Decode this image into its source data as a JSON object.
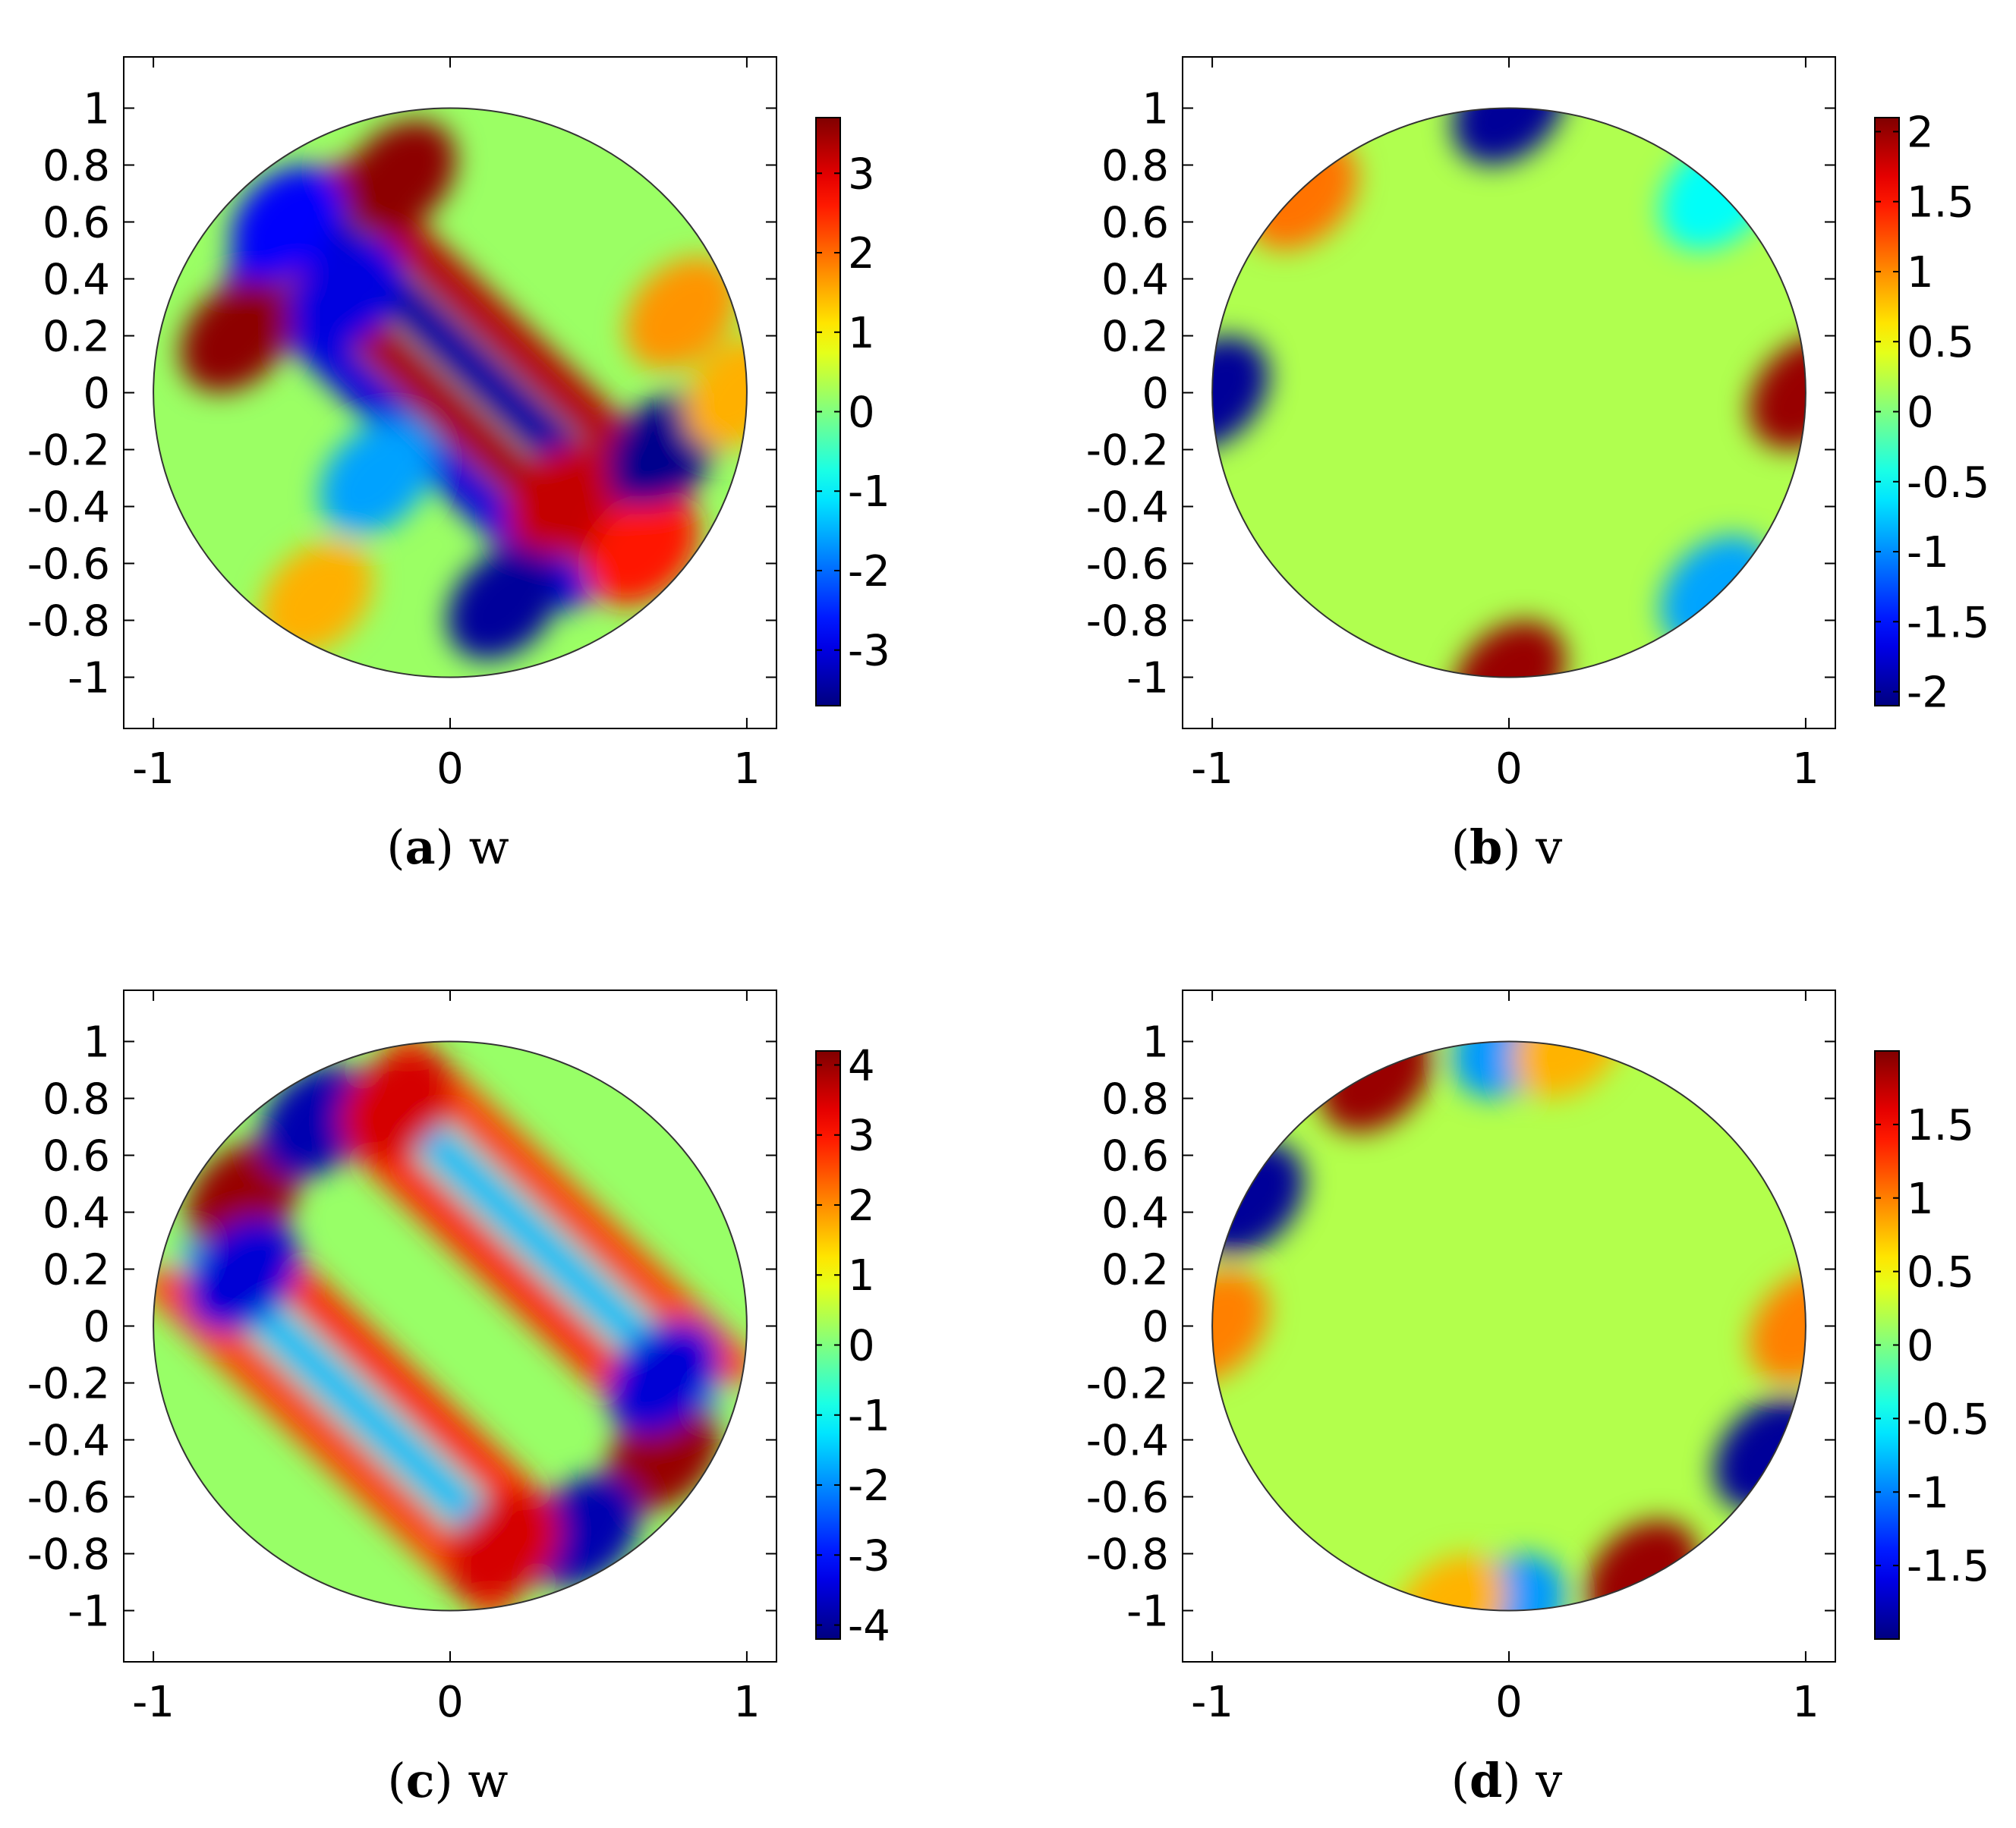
{
  "chart_data": [
    {
      "type": "heatmap",
      "panel": "a",
      "caption_letter": "a",
      "caption_var": "w",
      "domain": "unit disk",
      "xlim": [
        -1.1,
        1.1
      ],
      "ylim": [
        -1.18,
        1.18
      ],
      "x_ticks": [
        "-1",
        "0",
        "1"
      ],
      "x_tick_values": [
        -1,
        0,
        1
      ],
      "y_ticks": [
        "1",
        "0.8",
        "0.6",
        "0.4",
        "0.2",
        "0",
        "-0.2",
        "-0.4",
        "-0.6",
        "-0.8",
        "-1"
      ],
      "y_tick_values": [
        1,
        0.8,
        0.6,
        0.4,
        0.2,
        0,
        -0.2,
        -0.4,
        -0.6,
        -0.8,
        -1
      ],
      "colorbar": {
        "range": [
          -3.7,
          3.7
        ],
        "tick_labels": [
          "3",
          "2",
          "1",
          "0",
          "-1",
          "-2",
          "-3"
        ],
        "tick_values": [
          3,
          2,
          1,
          0,
          -1,
          -2,
          -3
        ],
        "colormap": "jet"
      },
      "features": [
        {
          "x": -0.17,
          "y": 0.76,
          "value": 3.6
        },
        {
          "x": -0.72,
          "y": 0.2,
          "value": 3.6
        },
        {
          "x": 0.38,
          "y": -0.38,
          "value": 3.2
        },
        {
          "x": 0.65,
          "y": -0.55,
          "value": 2.6
        },
        {
          "x": 0.18,
          "y": -0.74,
          "value": -3.5
        },
        {
          "x": 0.72,
          "y": -0.2,
          "value": -3.6
        },
        {
          "x": -0.35,
          "y": 0.35,
          "value": -3.0
        },
        {
          "x": -0.55,
          "y": 0.6,
          "value": -2.8
        },
        {
          "x": -0.25,
          "y": -0.3,
          "value": -1.6
        },
        {
          "x": 0.78,
          "y": 0.28,
          "value": 1.7
        },
        {
          "x": -0.45,
          "y": -0.72,
          "value": 1.5
        },
        {
          "x": 0.98,
          "y": 0.0,
          "value": 1.5
        }
      ],
      "stripes": [
        {
          "offset": 0.28,
          "value": 3.3
        },
        {
          "offset": 0.12,
          "value": -3.4
        },
        {
          "offset": -0.05,
          "value": 3.4
        },
        {
          "offset": -0.2,
          "value": -3.0
        }
      ]
    },
    {
      "type": "heatmap",
      "panel": "b",
      "caption_letter": "b",
      "caption_var": "v",
      "domain": "unit disk",
      "xlim": [
        -1.1,
        1.1
      ],
      "ylim": [
        -1.18,
        1.18
      ],
      "x_ticks": [
        "-1",
        "0",
        "1"
      ],
      "x_tick_values": [
        -1,
        0,
        1
      ],
      "y_ticks": [
        "1",
        "0.8",
        "0.6",
        "0.4",
        "0.2",
        "0",
        "-0.2",
        "-0.4",
        "-0.6",
        "-0.8",
        "-1"
      ],
      "y_tick_values": [
        1,
        0.8,
        0.6,
        0.4,
        0.2,
        0,
        -0.2,
        -0.4,
        -0.6,
        -0.8,
        -1
      ],
      "colorbar": {
        "range": [
          -2.1,
          2.1
        ],
        "tick_labels": [
          "2",
          "1.5",
          "1",
          "0.5",
          "0",
          "-0.5",
          "-1",
          "-1.5",
          "-2"
        ],
        "tick_values": [
          2,
          1.5,
          1,
          0.5,
          0,
          -0.5,
          -1,
          -1.5,
          -2
        ],
        "colormap": "jet"
      },
      "features": [
        {
          "x": 1.0,
          "y": 0.0,
          "value": 2.0
        },
        {
          "x": -1.0,
          "y": 0.0,
          "value": -2.0
        },
        {
          "x": 0.0,
          "y": 1.0,
          "value": -2.0
        },
        {
          "x": 0.0,
          "y": -1.0,
          "value": 2.0
        },
        {
          "x": -0.7,
          "y": 0.7,
          "value": 1.1
        },
        {
          "x": 0.7,
          "y": -0.7,
          "value": -0.9
        },
        {
          "x": 0.7,
          "y": 0.7,
          "value": -0.5
        }
      ]
    },
    {
      "type": "heatmap",
      "panel": "c",
      "caption_letter": "c",
      "caption_var": "w",
      "domain": "unit disk",
      "xlim": [
        -1.1,
        1.1
      ],
      "ylim": [
        -1.18,
        1.18
      ],
      "x_ticks": [
        "-1",
        "0",
        "1"
      ],
      "x_tick_values": [
        -1,
        0,
        1
      ],
      "y_ticks": [
        "1",
        "0.8",
        "0.6",
        "0.4",
        "0.2",
        "0",
        "-0.2",
        "-0.4",
        "-0.6",
        "-0.8",
        "-1"
      ],
      "y_tick_values": [
        1,
        0.8,
        0.6,
        0.4,
        0.2,
        0,
        -0.2,
        -0.4,
        -0.6,
        -0.8,
        -1
      ],
      "colorbar": {
        "range": [
          -4.2,
          4.2
        ],
        "tick_labels": [
          "4",
          "3",
          "2",
          "1",
          "0",
          "-1",
          "-2",
          "-3",
          "-4"
        ],
        "tick_values": [
          4,
          3,
          2,
          1,
          0,
          -1,
          -2,
          -3,
          -4
        ],
        "colormap": "jet"
      },
      "features": [
        {
          "x": -0.7,
          "y": 0.45,
          "value": 4.0
        },
        {
          "x": -0.7,
          "y": 0.18,
          "value": -3.5
        },
        {
          "x": -0.45,
          "y": 0.72,
          "value": -3.8
        },
        {
          "x": -0.18,
          "y": 0.78,
          "value": 3.5
        },
        {
          "x": 0.72,
          "y": -0.45,
          "value": 4.0
        },
        {
          "x": 0.72,
          "y": -0.18,
          "value": -3.5
        },
        {
          "x": 0.45,
          "y": -0.72,
          "value": -3.8
        },
        {
          "x": 0.18,
          "y": -0.78,
          "value": 3.5
        }
      ],
      "stripes": [
        {
          "offset": 0.58,
          "value": 2.6
        },
        {
          "offset": 0.42,
          "value": -1.6
        },
        {
          "offset": 0.26,
          "value": 2.8
        },
        {
          "offset": -0.26,
          "value": 2.8
        },
        {
          "offset": -0.42,
          "value": -1.6
        },
        {
          "offset": -0.58,
          "value": 2.6
        }
      ]
    },
    {
      "type": "heatmap",
      "panel": "d",
      "caption_letter": "d",
      "caption_var": "v",
      "domain": "unit disk",
      "xlim": [
        -1.1,
        1.1
      ],
      "ylim": [
        -1.18,
        1.18
      ],
      "x_ticks": [
        "-1",
        "0",
        "1"
      ],
      "x_tick_values": [
        -1,
        0,
        1
      ],
      "y_ticks": [
        "1",
        "0.8",
        "0.6",
        "0.4",
        "0.2",
        "0",
        "-0.2",
        "-0.4",
        "-0.6",
        "-0.8",
        "-1"
      ],
      "y_tick_values": [
        1,
        0.8,
        0.6,
        0.4,
        0.2,
        0,
        -0.2,
        -0.4,
        -0.6,
        -0.8,
        -1
      ],
      "colorbar": {
        "range": [
          -2.0,
          2.0
        ],
        "tick_labels": [
          "1.5",
          "1",
          "0.5",
          "0",
          "-0.5",
          "-1",
          "-1.5"
        ],
        "tick_values": [
          1.5,
          1,
          0.5,
          0,
          -0.5,
          -1,
          -1.5
        ],
        "colormap": "jet"
      },
      "features": [
        {
          "x": -0.45,
          "y": 0.88,
          "value": 1.9
        },
        {
          "x": 0.45,
          "y": -0.88,
          "value": 1.9
        },
        {
          "x": -0.88,
          "y": 0.45,
          "value": -1.9
        },
        {
          "x": 0.88,
          "y": -0.45,
          "value": -1.9
        },
        {
          "x": 0.0,
          "y": 1.0,
          "value": -0.9
        },
        {
          "x": 0.0,
          "y": -1.0,
          "value": -0.9
        },
        {
          "x": -1.0,
          "y": 0.0,
          "value": 1.0
        },
        {
          "x": 1.0,
          "y": 0.0,
          "value": 1.0
        },
        {
          "x": 0.2,
          "y": 1.0,
          "value": 0.8
        },
        {
          "x": -0.2,
          "y": -1.0,
          "value": 0.8
        }
      ]
    }
  ]
}
